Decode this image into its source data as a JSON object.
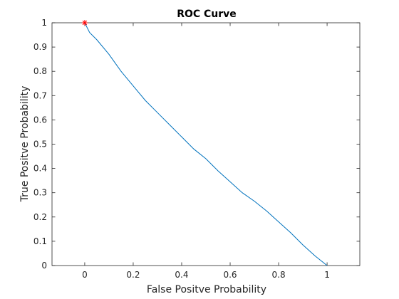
{
  "chart_data": {
    "type": "line",
    "title": "ROC Curve",
    "xlabel": "False Positve Probability",
    "ylabel": "True Positve Probability",
    "xlim": [
      -0.135,
      1.135
    ],
    "ylim": [
      0,
      1
    ],
    "x_ticks": [
      0,
      0.2,
      0.4,
      0.6,
      0.8,
      1
    ],
    "x_tick_labels": [
      "0",
      "0.2",
      "0.4",
      "0.6",
      "0.8",
      "1"
    ],
    "y_ticks": [
      0,
      0.1,
      0.2,
      0.3,
      0.4,
      0.5,
      0.6,
      0.7,
      0.8,
      0.9,
      1
    ],
    "y_tick_labels": [
      "0",
      "0.1",
      "0.2",
      "0.3",
      "0.4",
      "0.5",
      "0.6",
      "0.7",
      "0.8",
      "0.9",
      "1"
    ],
    "grid": false,
    "series": [
      {
        "color": "#0072bd",
        "x": [
          0,
          0.02,
          0.05,
          0.1,
          0.15,
          0.2,
          0.25,
          0.3,
          0.35,
          0.4,
          0.45,
          0.5,
          0.55,
          0.6,
          0.65,
          0.7,
          0.75,
          0.8,
          0.85,
          0.9,
          0.95,
          1
        ],
        "y": [
          1,
          0.96,
          0.93,
          0.87,
          0.8,
          0.74,
          0.68,
          0.63,
          0.58,
          0.53,
          0.48,
          0.44,
          0.39,
          0.345,
          0.3,
          0.265,
          0.225,
          0.18,
          0.135,
          0.085,
          0.04,
          0
        ]
      }
    ],
    "markers": [
      {
        "x": 0,
        "y": 1,
        "symbol": "*",
        "color": "#ff0000"
      }
    ]
  }
}
